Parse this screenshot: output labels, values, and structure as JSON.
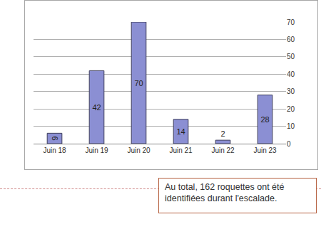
{
  "chart_data": {
    "type": "bar",
    "categories": [
      "Juin 18",
      "Juin 19",
      "Juin 20",
      "Juin 21",
      "Juin 22",
      "Juin 23"
    ],
    "values": [
      6,
      42,
      70,
      14,
      2,
      28
    ],
    "color": "#8b8fd3",
    "ylim": [
      0,
      70
    ],
    "yticks": [
      0,
      10,
      20,
      30,
      40,
      50,
      60,
      70
    ],
    "grid": true,
    "data_labels": true,
    "annotations": [
      "Au total, 162 roquettes ont été identifiées durant l'escalade."
    ]
  }
}
